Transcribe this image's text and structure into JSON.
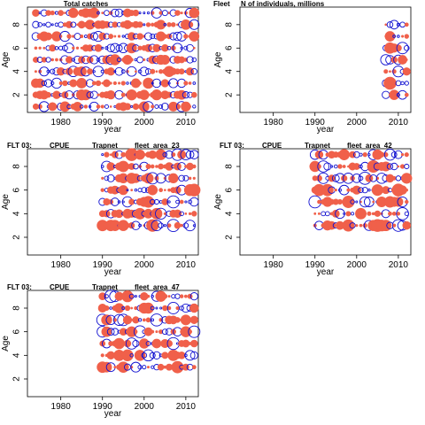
{
  "chart_data": [
    {
      "type": "scatter",
      "subtype": "bubble",
      "title": "Total catches",
      "xlabel": "year",
      "ylabel": "Age",
      "xlim": [
        1972,
        2013
      ],
      "ylim": [
        0.5,
        9.5
      ],
      "xticks": [
        1980,
        1990,
        2000,
        2010
      ],
      "yticks": [
        2,
        4,
        6,
        8
      ],
      "ages": [
        1,
        2,
        3,
        4,
        5,
        6,
        7,
        8,
        9
      ],
      "x_range": [
        1974,
        2012
      ],
      "year_step": 1,
      "colors": {
        "positive": "#f0604a",
        "negative": "#1010d0"
      }
    },
    {
      "type": "scatter",
      "subtype": "bubble",
      "title": "Fleet N of individuals, millions",
      "xlabel": "year",
      "ylabel": "Age",
      "xlim": [
        1972,
        2013
      ],
      "ylim": [
        0.5,
        9.5
      ],
      "xticks": [
        1980,
        1990,
        2000,
        2010
      ],
      "yticks": [
        2,
        4,
        6,
        8
      ],
      "ages": [
        2,
        3,
        4,
        5,
        6,
        7,
        8
      ],
      "x_range": [
        2007,
        2012
      ],
      "year_step": 1,
      "colors": {
        "positive": "#f0604a",
        "negative": "#1010d0"
      }
    },
    {
      "type": "scatter",
      "subtype": "bubble",
      "title": "FLT 03: CPUE Trapnet fleet_area_23",
      "xlabel": "year",
      "ylabel": "Age",
      "xlim": [
        1972,
        2013
      ],
      "ylim": [
        0.5,
        9.5
      ],
      "xticks": [
        1980,
        1990,
        2000,
        2010
      ],
      "yticks": [
        2,
        4,
        6,
        8
      ],
      "ages": [
        3,
        4,
        5,
        6,
        7,
        8,
        9
      ],
      "x_range": [
        1990,
        2012
      ],
      "year_step": 1,
      "colors": {
        "positive": "#f0604a",
        "negative": "#1010d0"
      }
    },
    {
      "type": "scatter",
      "subtype": "bubble",
      "title": "FLT 03: CPUE Trapnet fleet_area_42",
      "xlabel": "year",
      "ylabel": "Age",
      "xlim": [
        1972,
        2013
      ],
      "ylim": [
        0.5,
        9.5
      ],
      "xticks": [
        1980,
        1990,
        2000,
        2010
      ],
      "yticks": [
        2,
        4,
        6,
        8
      ],
      "ages": [
        3,
        4,
        5,
        6,
        7,
        8,
        9
      ],
      "x_range": [
        1990,
        2012
      ],
      "year_step": 1,
      "colors": {
        "positive": "#f0604a",
        "negative": "#1010d0"
      }
    },
    {
      "type": "scatter",
      "subtype": "bubble",
      "title": "FLT 03: CPUE Trapnet fleet_area_47",
      "xlabel": "year",
      "ylabel": "Age",
      "xlim": [
        1972,
        2013
      ],
      "ylim": [
        0.5,
        9.5
      ],
      "xticks": [
        1980,
        1990,
        2000,
        2010
      ],
      "yticks": [
        2,
        4,
        6,
        8
      ],
      "ages": [
        3,
        4,
        5,
        6,
        7,
        8,
        9
      ],
      "x_range": [
        1990,
        2012
      ],
      "year_step": 1,
      "colors": {
        "positive": "#f0604a",
        "negative": "#1010d0"
      }
    }
  ]
}
